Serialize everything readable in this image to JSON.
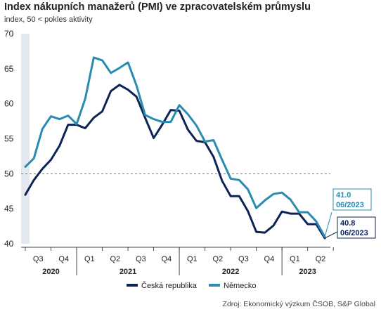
{
  "chart_data": {
    "type": "line",
    "title": "Index nákupních manažerů (PMI) ve zpracovatelském průmyslu",
    "subtitle": "index, 50 < pokles aktivity",
    "source": "Zdroj: Ekonomický výzkum ČSOB, S&P Global",
    "ylim": [
      40,
      70
    ],
    "yticks": [
      "40",
      "45",
      "50",
      "55",
      "60",
      "65",
      "70"
    ],
    "reference_line": 50,
    "quarter_labels": [
      "Q3",
      "Q4",
      "Q1",
      "Q2",
      "Q3",
      "Q4",
      "Q1",
      "Q2",
      "Q3",
      "Q4",
      "Q1",
      "Q2"
    ],
    "year_labels": [
      "2020",
      "2021",
      "2022",
      "2023"
    ],
    "x_start": "2020-06",
    "x_end": "2023-06",
    "colors": {
      "cz": "#0b2455",
      "de": "#2a8bb0",
      "ref": "#777777",
      "shade": "#e4e8f1"
    },
    "series": [
      {
        "name": "Česká republika",
        "key": "cz",
        "values": [
          47.0,
          49.1,
          50.7,
          52.0,
          54.0,
          57.0,
          57.0,
          56.5,
          58.0,
          58.9,
          61.8,
          62.7,
          62.0,
          61.0,
          58.0,
          55.1,
          57.0,
          59.1,
          59.0,
          56.3,
          54.7,
          54.5,
          52.4,
          49.0,
          46.8,
          46.8,
          44.7,
          41.7,
          41.6,
          42.6,
          44.6,
          44.3,
          44.3,
          42.8,
          42.8,
          40.8
        ]
      },
      {
        "name": "Německo",
        "key": "de",
        "values": [
          51.0,
          52.2,
          56.4,
          58.2,
          57.8,
          58.3,
          57.1,
          60.7,
          66.6,
          66.2,
          64.4,
          65.1,
          65.9,
          62.6,
          58.4,
          57.8,
          57.4,
          57.4,
          59.8,
          58.5,
          56.9,
          54.6,
          54.8,
          52.0,
          49.3,
          49.1,
          47.8,
          45.1,
          46.2,
          47.1,
          47.3,
          46.3,
          44.5,
          44.5,
          43.2,
          41.0
        ]
      }
    ],
    "annotations": [
      {
        "key": "de",
        "value": "41.0",
        "date": "06/2023"
      },
      {
        "key": "cz",
        "value": "40.8",
        "date": "06/2023"
      }
    ]
  }
}
